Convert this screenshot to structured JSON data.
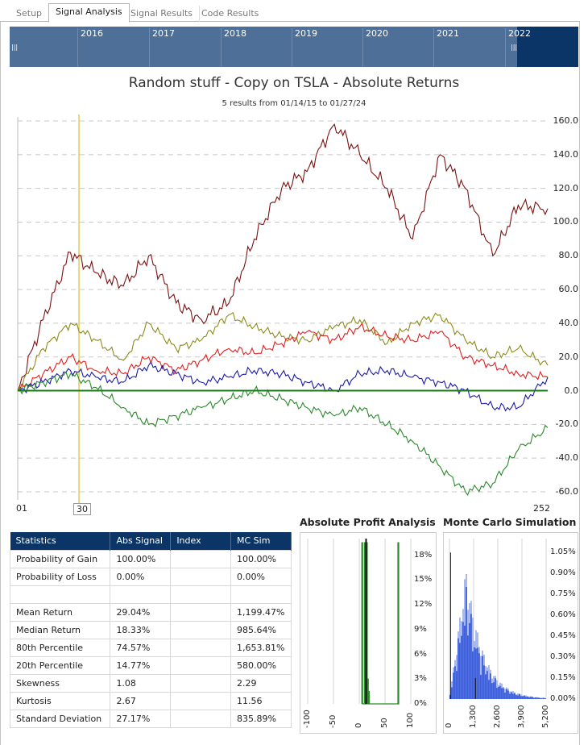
{
  "tabs": [
    {
      "label": "Setup",
      "active": false
    },
    {
      "label": "Signal Analysis",
      "active": true
    },
    {
      "label": "Signal Results",
      "active": false
    },
    {
      "label": "Code Results",
      "active": false
    }
  ],
  "navigator": {
    "years": [
      "2016",
      "2017",
      "2018",
      "2019",
      "2020",
      "2021",
      "2022"
    ]
  },
  "chart": {
    "title": "Random stuff - Copy on TSLA - Absolute Returns",
    "subtitle": "5 results from 01/14/15 to 01/27/24",
    "y_ticks": [
      "160.0",
      "140.0",
      "120.0",
      "100.0",
      "80.0",
      "60.0",
      "40.0",
      "20.0",
      "0.0",
      "-20.0",
      "-40.0",
      "-60.0"
    ],
    "x_ticks": {
      "start": "01",
      "marker": "30",
      "end": "252"
    }
  },
  "chart_data": [
    {
      "type": "line",
      "x": [
        1,
        13,
        26,
        38,
        51,
        63,
        76,
        88,
        101,
        113,
        126,
        138,
        151,
        163,
        176,
        188,
        201,
        213,
        226,
        238,
        252
      ],
      "series": [
        {
          "values": [
            0,
            42,
            82,
            70,
            62,
            80,
            52,
            42,
            52,
            90,
            120,
            130,
            158,
            140,
            120,
            90,
            140,
            120,
            80,
            110,
            108
          ]
        },
        {
          "values": [
            0,
            25,
            40,
            30,
            18,
            40,
            25,
            30,
            45,
            38,
            32,
            30,
            38,
            42,
            28,
            40,
            45,
            30,
            20,
            25,
            15
          ]
        },
        {
          "values": [
            0,
            10,
            20,
            12,
            10,
            20,
            12,
            18,
            25,
            22,
            28,
            35,
            30,
            38,
            32,
            30,
            35,
            20,
            15,
            10,
            8
          ]
        },
        {
          "values": [
            0,
            5,
            12,
            8,
            5,
            15,
            10,
            5,
            8,
            12,
            10,
            5,
            0,
            10,
            12,
            8,
            5,
            0,
            -10,
            -10,
            8
          ]
        },
        {
          "values": [
            0,
            5,
            10,
            2,
            -10,
            -20,
            -15,
            -10,
            -5,
            0,
            -5,
            -10,
            -15,
            -10,
            -20,
            -30,
            -45,
            -60,
            -55,
            -35,
            -22
          ]
        }
      ],
      "colors": [
        "#7a1111",
        "#8c8c1a",
        "#e02020",
        "#1a1aaa",
        "#2a8a2a"
      ],
      "ylim": [
        -60,
        160
      ],
      "baseline": 0,
      "baseline_color": "#1a7a1a",
      "marker_x": 30,
      "marker_color": "#d9b000"
    },
    {
      "type": "line",
      "title": "Absolute Profit Analysis",
      "x_ticks": [
        "-100",
        "-50",
        "0",
        "50",
        "100"
      ],
      "y_ticks": [
        "18%",
        "15%",
        "12%",
        "9%",
        "6%",
        "3%",
        "0%"
      ],
      "xlim": [
        -100,
        100
      ],
      "ylim": [
        0,
        20
      ]
    },
    {
      "type": "bar",
      "title": "Monte Carlo Simulation",
      "x_ticks": [
        "0",
        "1,300",
        "2,600",
        "3,900",
        "5,200"
      ],
      "y_ticks": [
        "1.05%",
        "0.90%",
        "0.75%",
        "0.60%",
        "0.45%",
        "0.30%",
        "0.15%",
        "0.00%"
      ],
      "xlim": [
        0,
        5200
      ],
      "ylim": [
        0,
        1.15
      ]
    }
  ],
  "stats_table": {
    "headers": [
      "Statistics",
      "Abs Signal",
      "Index",
      "MC Sim"
    ],
    "rows": [
      [
        "Probability of Gain",
        "100.00%",
        "",
        "100.00%"
      ],
      [
        "Probability of Loss",
        "0.00%",
        "",
        "0.00%"
      ],
      [
        "",
        "",
        "",
        ""
      ],
      [
        "Mean Return",
        "29.04%",
        "",
        "1,199.47%"
      ],
      [
        "Median Return",
        "18.33%",
        "",
        "985.64%"
      ],
      [
        "80th Percentile",
        "74.57%",
        "",
        "1,653.81%"
      ],
      [
        "20th Percentile",
        "14.77%",
        "",
        "580.00%"
      ],
      [
        "Skewness",
        "1.08",
        "",
        "2.29"
      ],
      [
        "Kurtosis",
        "2.67",
        "",
        "11.56"
      ],
      [
        "Standard Deviation",
        "27.17%",
        "",
        "835.89%"
      ]
    ]
  }
}
